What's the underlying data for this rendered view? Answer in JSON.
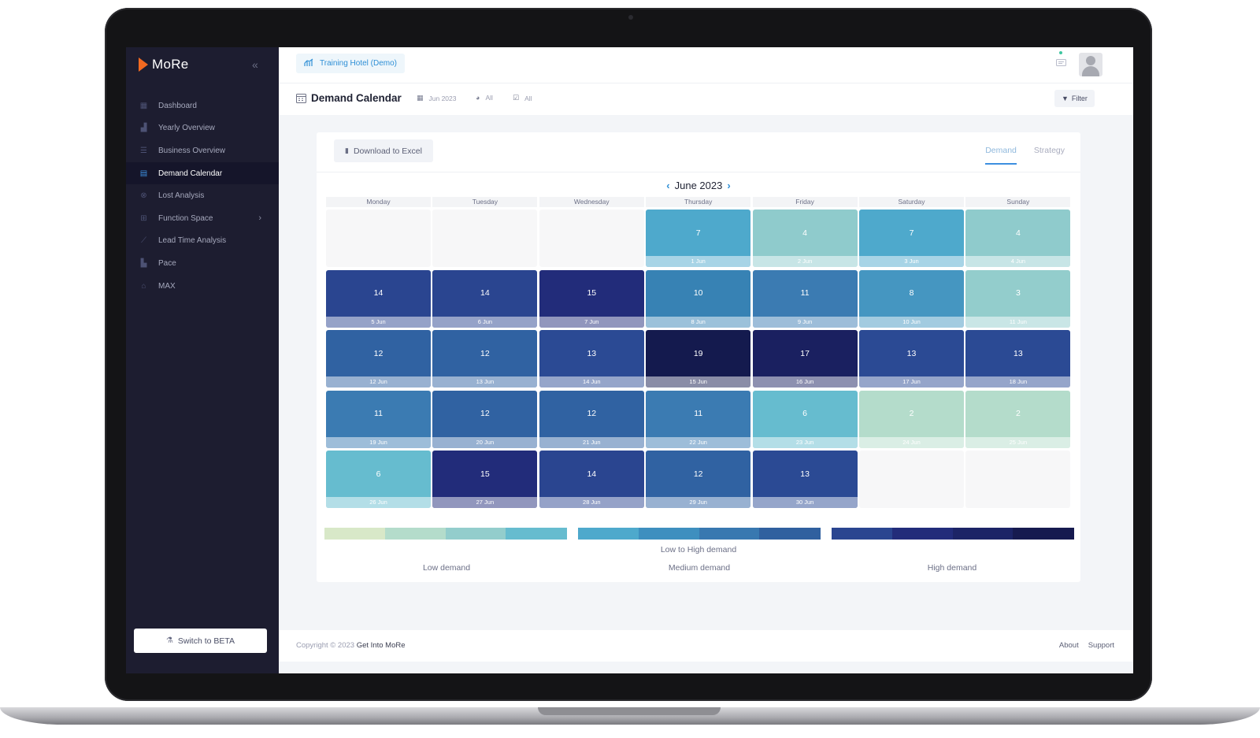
{
  "sidebar": {
    "brand": "MoRe",
    "items": [
      {
        "label": "Dashboard",
        "icon": "dashboard-icon"
      },
      {
        "label": "Yearly Overview",
        "icon": "bar-chart-icon"
      },
      {
        "label": "Business Overview",
        "icon": "list-icon"
      },
      {
        "label": "Demand Calendar",
        "icon": "calendar-icon",
        "active": true
      },
      {
        "label": "Lost Analysis",
        "icon": "close-circle-icon"
      },
      {
        "label": "Function Space",
        "icon": "table-icon",
        "has_children": true
      },
      {
        "label": "Lead Time Analysis",
        "icon": "line-chart-icon"
      },
      {
        "label": "Pace",
        "icon": "area-chart-icon"
      },
      {
        "label": "MAX",
        "icon": "robot-icon"
      }
    ],
    "beta_button": "Switch to BETA"
  },
  "topbar": {
    "hotel": "Training Hotel (Demo)"
  },
  "titlebar": {
    "title": "Demand Calendar",
    "period": "Jun 2023",
    "segment": "All",
    "status": "All",
    "filter": "Filter"
  },
  "card": {
    "download": "Download to Excel",
    "tabs": [
      {
        "label": "Demand",
        "active": true
      },
      {
        "label": "Strategy",
        "active": false
      }
    ]
  },
  "calendar": {
    "month": "June 2023",
    "weekdays": [
      "Monday",
      "Tuesday",
      "Wednesday",
      "Thursday",
      "Friday",
      "Saturday",
      "Sunday"
    ],
    "first_day_offset": 3,
    "days": [
      {
        "date": "1 Jun",
        "value": "7",
        "color": "#4ea9cc"
      },
      {
        "date": "2 Jun",
        "value": "4",
        "color": "#8fcbcc"
      },
      {
        "date": "3 Jun",
        "value": "7",
        "color": "#4ea9cc"
      },
      {
        "date": "4 Jun",
        "value": "4",
        "color": "#8fcbcc"
      },
      {
        "date": "5 Jun",
        "value": "14",
        "color": "#2a4590"
      },
      {
        "date": "6 Jun",
        "value": "14",
        "color": "#2a4590"
      },
      {
        "date": "7 Jun",
        "value": "15",
        "color": "#222c7a"
      },
      {
        "date": "8 Jun",
        "value": "10",
        "color": "#3782b4"
      },
      {
        "date": "9 Jun",
        "value": "11",
        "color": "#3b7bb2"
      },
      {
        "date": "10 Jun",
        "value": "8",
        "color": "#4596c1"
      },
      {
        "date": "11 Jun",
        "value": "3",
        "color": "#93cdcc"
      },
      {
        "date": "12 Jun",
        "value": "12",
        "color": "#3062a2"
      },
      {
        "date": "13 Jun",
        "value": "12",
        "color": "#3062a2"
      },
      {
        "date": "14 Jun",
        "value": "13",
        "color": "#2b4a94"
      },
      {
        "date": "15 Jun",
        "value": "19",
        "color": "#141a4e"
      },
      {
        "date": "16 Jun",
        "value": "17",
        "color": "#1a2060"
      },
      {
        "date": "17 Jun",
        "value": "13",
        "color": "#2b4a94"
      },
      {
        "date": "18 Jun",
        "value": "13",
        "color": "#2b4a94"
      },
      {
        "date": "19 Jun",
        "value": "11",
        "color": "#3b7bb2"
      },
      {
        "date": "20 Jun",
        "value": "12",
        "color": "#3062a2"
      },
      {
        "date": "21 Jun",
        "value": "12",
        "color": "#3062a2"
      },
      {
        "date": "22 Jun",
        "value": "11",
        "color": "#3b7bb2"
      },
      {
        "date": "23 Jun",
        "value": "6",
        "color": "#66bccf"
      },
      {
        "date": "24 Jun",
        "value": "2",
        "color": "#b4dccb"
      },
      {
        "date": "25 Jun",
        "value": "2",
        "color": "#b4dccb"
      },
      {
        "date": "26 Jun",
        "value": "6",
        "color": "#66bccf"
      },
      {
        "date": "27 Jun",
        "value": "15",
        "color": "#222c7a"
      },
      {
        "date": "28 Jun",
        "value": "14",
        "color": "#2a4590"
      },
      {
        "date": "29 Jun",
        "value": "12",
        "color": "#3062a2"
      },
      {
        "date": "30 Jun",
        "value": "13",
        "color": "#2b4a94"
      }
    ]
  },
  "legend": {
    "low_colors": [
      "#d8e8c8",
      "#b4dccb",
      "#93cdcc",
      "#66bccf"
    ],
    "medium_colors": [
      "#4ea9cc",
      "#3e8fbf",
      "#3878b0",
      "#30609f"
    ],
    "high_colors": [
      "#2a4590",
      "#222c7a",
      "#1c2466",
      "#161a4f"
    ],
    "caption": "Low to High demand",
    "low": "Low demand",
    "medium": "Medium demand",
    "high": "High demand"
  },
  "footer": {
    "copyright": "Copyright © 2023",
    "brand": "Get Into MoRe",
    "links": [
      "About",
      "Support"
    ]
  }
}
